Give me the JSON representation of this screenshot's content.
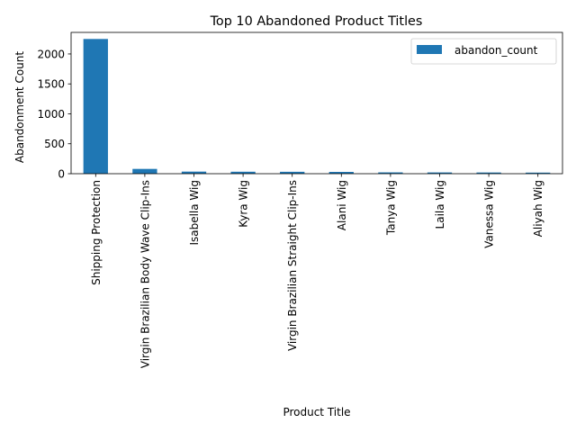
{
  "chart_data": {
    "type": "bar",
    "title": "Top 10 Abandoned Product Titles",
    "xlabel": "Product Title",
    "ylabel": "Abandonment Count",
    "ylim": [
      0,
      2360
    ],
    "yticks": [
      0,
      500,
      1000,
      1500,
      2000
    ],
    "grid": false,
    "legend_position": "top-right",
    "categories": [
      "Shipping Protection",
      "Virgin Brazilian Body Wave Clip-Ins",
      "Isabella Wig",
      "Kyra Wig",
      "Virgin Brazilian Straight Clip-Ins",
      "Alani Wig",
      "Tanya Wig",
      "Laila Wig",
      "Vanessa Wig",
      "Aliyah Wig"
    ],
    "series": [
      {
        "name": "abandon_count",
        "color": "#1f77b4",
        "values": [
          2250,
          80,
          35,
          33,
          32,
          30,
          22,
          21,
          20,
          18
        ]
      }
    ]
  }
}
